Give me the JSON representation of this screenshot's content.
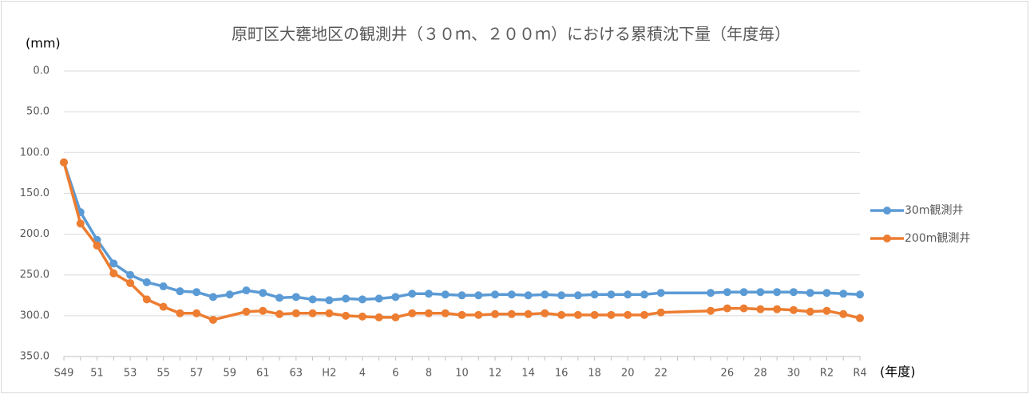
{
  "chart_data": {
    "type": "line",
    "title": "原町区大甕地区の観測井（３０ｍ、２００ｍ）における累積沈下量（年度毎）",
    "y_label": "(mm)",
    "x_label": "(年度)",
    "categories": [
      "S49",
      null,
      "51",
      null,
      "53",
      null,
      "55",
      null,
      "57",
      null,
      "59",
      null,
      "61",
      null,
      "63",
      null,
      "H2",
      null,
      "4",
      null,
      "6",
      null,
      "8",
      null,
      "10",
      null,
      "12",
      null,
      "14",
      null,
      "16",
      null,
      "18",
      null,
      "20",
      null,
      "22",
      null,
      null,
      null,
      "26",
      null,
      "28",
      null,
      "30",
      null,
      "R2",
      null,
      "R4"
    ],
    "series": [
      {
        "name": "30m観測井",
        "color": "#5b9bd5",
        "values": [
          112,
          173,
          207,
          236,
          250,
          259,
          264,
          270,
          271,
          277,
          274,
          269,
          272,
          278,
          277,
          280,
          281,
          279,
          280,
          279,
          277,
          273,
          273,
          274,
          275,
          275,
          274,
          274,
          275,
          274,
          275,
          275,
          274,
          274,
          274,
          274,
          272,
          null,
          null,
          272,
          271,
          271,
          271,
          271,
          271,
          272,
          272,
          273,
          274
        ]
      },
      {
        "name": "200m観測井",
        "color": "#ed7d31",
        "values": [
          112,
          187,
          214,
          248,
          260,
          280,
          289,
          297,
          297,
          305,
          null,
          295,
          294,
          298,
          297,
          297,
          297,
          300,
          301,
          302,
          302,
          297,
          297,
          297,
          299,
          299,
          298,
          298,
          298,
          297,
          299,
          299,
          299,
          299,
          299,
          299,
          296,
          null,
          null,
          294,
          291,
          291,
          292,
          292,
          293,
          295,
          294,
          298,
          303
        ]
      }
    ],
    "ylim": [
      0,
      350
    ],
    "yticks": [
      {
        "value": 0,
        "label": "0.0"
      },
      {
        "value": 50,
        "label": "50.0"
      },
      {
        "value": 100,
        "label": "100.0"
      },
      {
        "value": 150,
        "label": "150.0"
      },
      {
        "value": 200,
        "label": "200.0"
      },
      {
        "value": 250,
        "label": "250.0"
      },
      {
        "value": 300,
        "label": "300.0"
      },
      {
        "value": 350,
        "label": "350.0"
      }
    ],
    "y_inverted": true,
    "grid": true,
    "span_gaps": true,
    "legend": "right"
  }
}
